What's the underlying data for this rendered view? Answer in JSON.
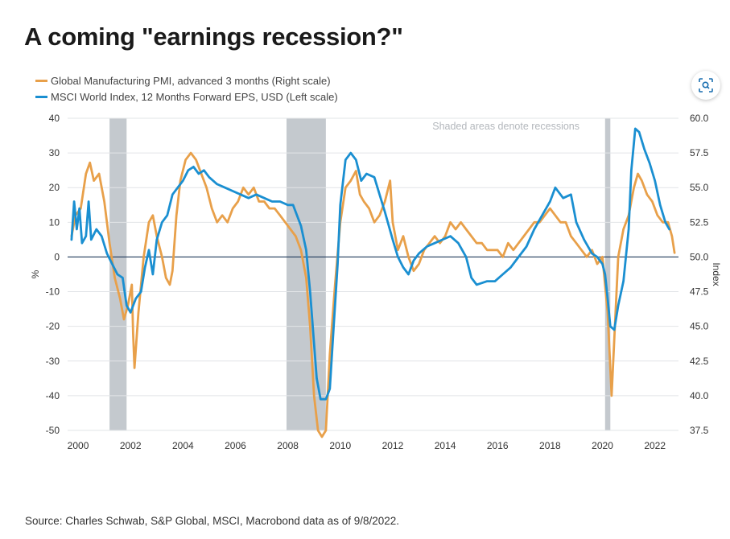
{
  "page": {
    "title": "A coming \"earnings recession?\"",
    "source": "Source: Charles Schwab, S&P Global, MSCI, Macrobond data as of 9/8/2022."
  },
  "icons": {
    "zoom": "zoom-scan-icon"
  },
  "colors": {
    "pmi": "#e8a04a",
    "eps": "#1a8fd1",
    "recession": "#c4c9ce",
    "zero_line": "#1f3a5a"
  },
  "chart_data": {
    "type": "line",
    "annotation": "Shaded areas denote recessions",
    "ylabel_left": "%",
    "ylabel_right": "Index",
    "xlim": [
      1999.6,
      2022.9
    ],
    "ylim_left": [
      -50,
      40
    ],
    "ylim_right": [
      37.5,
      60.0
    ],
    "x_ticks": [
      "2000",
      "2002",
      "2004",
      "2006",
      "2008",
      "2010",
      "2012",
      "2014",
      "2016",
      "2018",
      "2020",
      "2022"
    ],
    "y_ticks_left": [
      "40",
      "30",
      "20",
      "10",
      "0",
      "-10",
      "-20",
      "-30",
      "-40",
      "-50"
    ],
    "y_ticks_right": [
      "60.0",
      "57.5",
      "55.0",
      "52.5",
      "50.0",
      "47.5",
      "45.0",
      "42.5",
      "40.0",
      "37.5"
    ],
    "recessions": [
      [
        2001.2,
        2001.85
      ],
      [
        2007.95,
        2009.45
      ],
      [
        2020.1,
        2020.3
      ]
    ],
    "legend_position": "top-left",
    "series": [
      {
        "name": "Global Manufacturing PMI, advanced 3 months (Right scale)",
        "axis": "right",
        "points": [
          [
            1999.75,
            51.5
          ],
          [
            1999.9,
            53.0
          ],
          [
            2000.1,
            53.5
          ],
          [
            2000.3,
            56.0
          ],
          [
            2000.45,
            56.8
          ],
          [
            2000.6,
            55.5
          ],
          [
            2000.8,
            56.0
          ],
          [
            2001.0,
            54.0
          ],
          [
            2001.2,
            51.0
          ],
          [
            2001.4,
            48.5
          ],
          [
            2001.6,
            47.0
          ],
          [
            2001.75,
            45.5
          ],
          [
            2001.9,
            46.5
          ],
          [
            2002.05,
            48.0
          ],
          [
            2002.1,
            44.5
          ],
          [
            2002.15,
            42.0
          ],
          [
            2002.3,
            46.0
          ],
          [
            2002.5,
            50.0
          ],
          [
            2002.7,
            52.5
          ],
          [
            2002.85,
            53.0
          ],
          [
            2003.0,
            51.5
          ],
          [
            2003.2,
            50.0
          ],
          [
            2003.35,
            48.5
          ],
          [
            2003.5,
            48.0
          ],
          [
            2003.6,
            49.0
          ],
          [
            2003.75,
            53.0
          ],
          [
            2003.9,
            55.5
          ],
          [
            2004.1,
            57.0
          ],
          [
            2004.3,
            57.5
          ],
          [
            2004.5,
            57.0
          ],
          [
            2004.7,
            56.0
          ],
          [
            2004.9,
            55.0
          ],
          [
            2005.1,
            53.5
          ],
          [
            2005.3,
            52.5
          ],
          [
            2005.5,
            53.0
          ],
          [
            2005.7,
            52.5
          ],
          [
            2005.9,
            53.5
          ],
          [
            2006.1,
            54.0
          ],
          [
            2006.3,
            55.0
          ],
          [
            2006.5,
            54.5
          ],
          [
            2006.7,
            55.0
          ],
          [
            2006.9,
            54.0
          ],
          [
            2007.1,
            54.0
          ],
          [
            2007.3,
            53.5
          ],
          [
            2007.5,
            53.5
          ],
          [
            2007.7,
            53.0
          ],
          [
            2007.9,
            52.5
          ],
          [
            2008.1,
            52.0
          ],
          [
            2008.3,
            51.5
          ],
          [
            2008.5,
            50.5
          ],
          [
            2008.7,
            48.5
          ],
          [
            2008.85,
            45.0
          ],
          [
            2009.0,
            40.0
          ],
          [
            2009.15,
            37.5
          ],
          [
            2009.3,
            36.5
          ],
          [
            2009.45,
            37.5
          ],
          [
            2009.6,
            43.0
          ],
          [
            2009.8,
            48.0
          ],
          [
            2010.0,
            52.5
          ],
          [
            2010.2,
            55.0
          ],
          [
            2010.4,
            55.5
          ],
          [
            2010.6,
            56.2
          ],
          [
            2010.75,
            54.5
          ],
          [
            2010.9,
            54.0
          ],
          [
            2011.1,
            53.5
          ],
          [
            2011.3,
            52.5
          ],
          [
            2011.5,
            53.0
          ],
          [
            2011.7,
            54.0
          ],
          [
            2011.9,
            55.5
          ],
          [
            2012.0,
            52.5
          ],
          [
            2012.2,
            50.5
          ],
          [
            2012.4,
            51.5
          ],
          [
            2012.6,
            50.0
          ],
          [
            2012.8,
            49.0
          ],
          [
            2013.0,
            49.5
          ],
          [
            2013.2,
            50.5
          ],
          [
            2013.4,
            51.0
          ],
          [
            2013.6,
            51.5
          ],
          [
            2013.8,
            51.0
          ],
          [
            2014.0,
            51.5
          ],
          [
            2014.2,
            52.5
          ],
          [
            2014.4,
            52.0
          ],
          [
            2014.6,
            52.5
          ],
          [
            2014.8,
            52.0
          ],
          [
            2015.0,
            51.5
          ],
          [
            2015.2,
            51.0
          ],
          [
            2015.4,
            51.0
          ],
          [
            2015.6,
            50.5
          ],
          [
            2015.8,
            50.5
          ],
          [
            2016.0,
            50.5
          ],
          [
            2016.2,
            50.0
          ],
          [
            2016.4,
            51.0
          ],
          [
            2016.6,
            50.5
          ],
          [
            2016.8,
            51.0
          ],
          [
            2017.0,
            51.5
          ],
          [
            2017.2,
            52.0
          ],
          [
            2017.4,
            52.5
          ],
          [
            2017.6,
            52.5
          ],
          [
            2017.8,
            53.0
          ],
          [
            2018.0,
            53.5
          ],
          [
            2018.2,
            53.0
          ],
          [
            2018.4,
            52.5
          ],
          [
            2018.6,
            52.5
          ],
          [
            2018.8,
            51.5
          ],
          [
            2019.0,
            51.0
          ],
          [
            2019.2,
            50.5
          ],
          [
            2019.4,
            50.0
          ],
          [
            2019.6,
            50.5
          ],
          [
            2019.8,
            49.5
          ],
          [
            2020.0,
            50.0
          ],
          [
            2020.2,
            46.0
          ],
          [
            2020.35,
            40.0
          ],
          [
            2020.5,
            46.0
          ],
          [
            2020.6,
            50.0
          ],
          [
            2020.8,
            52.0
          ],
          [
            2021.0,
            53.0
          ],
          [
            2021.2,
            55.0
          ],
          [
            2021.35,
            56.0
          ],
          [
            2021.5,
            55.5
          ],
          [
            2021.7,
            54.5
          ],
          [
            2021.9,
            54.0
          ],
          [
            2022.1,
            53.0
          ],
          [
            2022.3,
            52.5
          ],
          [
            2022.5,
            52.5
          ],
          [
            2022.65,
            51.5
          ],
          [
            2022.75,
            50.3
          ]
        ]
      },
      {
        "name": "MSCI World Index, 12 Months Forward EPS, USD (Left scale)",
        "axis": "left",
        "points": [
          [
            1999.75,
            5
          ],
          [
            1999.85,
            16
          ],
          [
            1999.95,
            8
          ],
          [
            2000.05,
            14
          ],
          [
            2000.15,
            4
          ],
          [
            2000.3,
            6
          ],
          [
            2000.4,
            16
          ],
          [
            2000.5,
            5
          ],
          [
            2000.7,
            8
          ],
          [
            2000.9,
            6
          ],
          [
            2001.1,
            1
          ],
          [
            2001.3,
            -2
          ],
          [
            2001.5,
            -5
          ],
          [
            2001.7,
            -6
          ],
          [
            2001.85,
            -14
          ],
          [
            2002.0,
            -16
          ],
          [
            2002.2,
            -12
          ],
          [
            2002.4,
            -10
          ],
          [
            2002.55,
            -3
          ],
          [
            2002.7,
            2
          ],
          [
            2002.85,
            -5
          ],
          [
            2003.0,
            5
          ],
          [
            2003.2,
            10
          ],
          [
            2003.4,
            12
          ],
          [
            2003.6,
            18
          ],
          [
            2003.8,
            20
          ],
          [
            2004.0,
            22
          ],
          [
            2004.2,
            25
          ],
          [
            2004.4,
            26
          ],
          [
            2004.6,
            24
          ],
          [
            2004.8,
            25
          ],
          [
            2005.0,
            23
          ],
          [
            2005.3,
            21
          ],
          [
            2005.6,
            20
          ],
          [
            2005.9,
            19
          ],
          [
            2006.2,
            18
          ],
          [
            2006.5,
            17
          ],
          [
            2006.8,
            18
          ],
          [
            2007.1,
            17
          ],
          [
            2007.4,
            16
          ],
          [
            2007.7,
            16
          ],
          [
            2008.0,
            15
          ],
          [
            2008.2,
            15
          ],
          [
            2008.5,
            9
          ],
          [
            2008.7,
            2
          ],
          [
            2008.85,
            -10
          ],
          [
            2009.0,
            -25
          ],
          [
            2009.1,
            -35
          ],
          [
            2009.25,
            -41
          ],
          [
            2009.45,
            -41
          ],
          [
            2009.6,
            -38
          ],
          [
            2009.75,
            -20
          ],
          [
            2009.9,
            -2
          ],
          [
            2010.0,
            15
          ],
          [
            2010.2,
            28
          ],
          [
            2010.4,
            30
          ],
          [
            2010.6,
            28
          ],
          [
            2010.8,
            22
          ],
          [
            2011.0,
            24
          ],
          [
            2011.3,
            23
          ],
          [
            2011.5,
            18
          ],
          [
            2011.7,
            13
          ],
          [
            2012.0,
            5
          ],
          [
            2012.2,
            0
          ],
          [
            2012.4,
            -3
          ],
          [
            2012.6,
            -5
          ],
          [
            2012.8,
            -1
          ],
          [
            2013.0,
            1
          ],
          [
            2013.3,
            3
          ],
          [
            2013.6,
            4
          ],
          [
            2013.9,
            5
          ],
          [
            2014.2,
            6
          ],
          [
            2014.5,
            4
          ],
          [
            2014.8,
            0
          ],
          [
            2015.0,
            -6
          ],
          [
            2015.2,
            -8
          ],
          [
            2015.6,
            -7
          ],
          [
            2015.9,
            -7
          ],
          [
            2016.2,
            -5
          ],
          [
            2016.5,
            -3
          ],
          [
            2016.8,
            0
          ],
          [
            2017.1,
            3
          ],
          [
            2017.4,
            8
          ],
          [
            2017.7,
            12
          ],
          [
            2018.0,
            16
          ],
          [
            2018.2,
            20
          ],
          [
            2018.5,
            17
          ],
          [
            2018.8,
            18
          ],
          [
            2019.0,
            10
          ],
          [
            2019.3,
            5
          ],
          [
            2019.6,
            1
          ],
          [
            2019.8,
            0
          ],
          [
            2020.0,
            -2
          ],
          [
            2020.1,
            -5
          ],
          [
            2020.2,
            -12
          ],
          [
            2020.3,
            -20
          ],
          [
            2020.45,
            -21
          ],
          [
            2020.6,
            -14
          ],
          [
            2020.8,
            -7
          ],
          [
            2021.0,
            8
          ],
          [
            2021.1,
            25
          ],
          [
            2021.25,
            37
          ],
          [
            2021.4,
            36
          ],
          [
            2021.6,
            31
          ],
          [
            2021.8,
            27
          ],
          [
            2022.0,
            22
          ],
          [
            2022.2,
            15
          ],
          [
            2022.4,
            10
          ],
          [
            2022.55,
            8
          ]
        ]
      }
    ]
  }
}
